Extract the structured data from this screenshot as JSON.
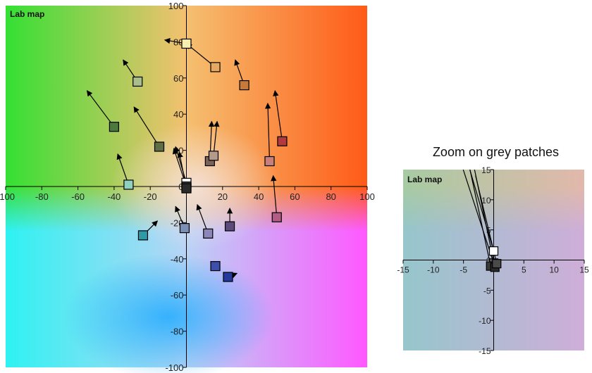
{
  "chart_data": [
    {
      "type": "scatter",
      "title": "Lab map",
      "xlim": [
        -100,
        100
      ],
      "ylim": [
        -100,
        100
      ],
      "xticks": [
        "-100",
        "-80",
        "-60",
        "-40",
        "-20",
        "0",
        "20",
        "40",
        "60",
        "80",
        "100"
      ],
      "yticks": [
        "100",
        "80",
        "60",
        "40",
        "20",
        "0",
        "-20",
        "-40",
        "-60",
        "-80",
        "-100"
      ],
      "patches": [
        {
          "a": 0,
          "b": 79,
          "to_a": -12,
          "to_b": 81,
          "color": "#f6efb0"
        },
        {
          "a": 16,
          "b": 66,
          "to_a": 0,
          "to_b": 79,
          "color": "#e6a964"
        },
        {
          "a": 32,
          "b": 56,
          "to_a": 27,
          "to_b": 70,
          "color": "#c97a3a"
        },
        {
          "a": -27,
          "b": 58,
          "to_a": -35,
          "to_b": 70,
          "color": "#a9be8a"
        },
        {
          "a": -40,
          "b": 33,
          "to_a": -55,
          "to_b": 53,
          "color": "#4c7a3e"
        },
        {
          "a": -15,
          "b": 22,
          "to_a": -29,
          "to_b": 44,
          "color": "#5f6e45"
        },
        {
          "a": 53,
          "b": 25,
          "to_a": 49,
          "to_b": 53,
          "color": "#b23a3e"
        },
        {
          "a": 46,
          "b": 14,
          "to_a": 45,
          "to_b": 46,
          "color": "#c9807c"
        },
        {
          "a": 13,
          "b": 14,
          "to_a": 14,
          "to_b": 36,
          "color": "#7a6358"
        },
        {
          "a": 15,
          "b": 17,
          "to_a": 17,
          "to_b": 36,
          "color": "#b59a8c"
        },
        {
          "a": -32,
          "b": 1,
          "to_a": -38,
          "to_b": 18,
          "color": "#8fd0c0"
        },
        {
          "a": 0,
          "b": 2,
          "to_a": -6,
          "to_b": 22,
          "color": "#ffffff"
        },
        {
          "a": 0,
          "b": 0,
          "to_a": -7,
          "to_b": 21,
          "color": "#3a3a3a"
        },
        {
          "a": 0,
          "b": -1,
          "to_a": -4,
          "to_b": 19,
          "color": "#2a2a2a"
        },
        {
          "a": -24,
          "b": -27,
          "to_a": -16,
          "to_b": -19,
          "color": "#2f9aa6"
        },
        {
          "a": -1,
          "b": -23,
          "to_a": -6,
          "to_b": -11,
          "color": "#7b8fb5"
        },
        {
          "a": 12,
          "b": -26,
          "to_a": 6,
          "to_b": -10,
          "color": "#8d86b8"
        },
        {
          "a": 24,
          "b": -22,
          "to_a": 24,
          "to_b": -12,
          "color": "#5b4a7a"
        },
        {
          "a": 50,
          "b": -17,
          "to_a": 48,
          "to_b": 6,
          "color": "#b25d86"
        },
        {
          "a": 16,
          "b": -44,
          "to_a": 16,
          "to_b": -44,
          "color": "#3d4fa8"
        },
        {
          "a": 23,
          "b": -50,
          "to_a": 28,
          "to_b": -48,
          "color": "#233a9c"
        }
      ]
    },
    {
      "type": "scatter",
      "title": "Zoom on grey patches",
      "subtitle": "Lab map",
      "xlim": [
        -15,
        15
      ],
      "ylim": [
        -15,
        15
      ],
      "xticks": [
        "-15",
        "-10",
        "-5",
        "0",
        "5",
        "10",
        "15"
      ],
      "yticks": [
        "15",
        "10",
        "5",
        "0",
        "-5",
        "-10",
        "-15"
      ],
      "patches": [
        {
          "a": 0,
          "b": 1.5,
          "to_a": -6,
          "to_b": 22,
          "color": "#ffffff"
        },
        {
          "a": 0,
          "b": -0.5,
          "to_a": -7,
          "to_b": 21,
          "color": "#5a5a5a"
        },
        {
          "a": -0.5,
          "b": -1,
          "to_a": -5,
          "to_b": 20,
          "color": "#3a3a3a"
        },
        {
          "a": 0.2,
          "b": -1.2,
          "to_a": -4,
          "to_b": 19,
          "color": "#2a2a2a"
        },
        {
          "a": 0.5,
          "b": -0.6,
          "to_a": -3,
          "to_b": 14,
          "color": "#4a4a4a"
        }
      ]
    }
  ]
}
